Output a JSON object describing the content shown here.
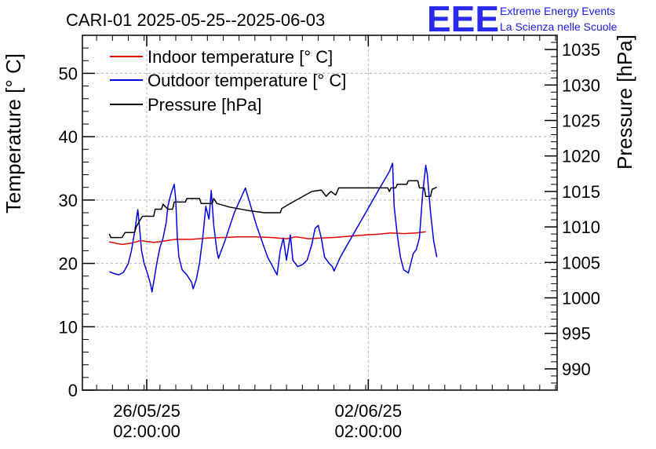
{
  "header": {
    "title": "CARI-01 2025-05-25--2025-06-03",
    "logo": {
      "mark": "EEE",
      "line1": "Extreme Energy Events",
      "line2": "La Scienza nelle Scuole"
    }
  },
  "chart_data": {
    "type": "line",
    "title": "CARI-01 2025-05-25--2025-06-03",
    "grid": true,
    "legend_position": "top-left",
    "x_axis": {
      "min_day": -0.95,
      "max_day": 14.05,
      "tick_labels": [
        {
          "day": 1.0833,
          "line1": "26/05/25",
          "line2": "02:00:00"
        },
        {
          "day": 8.0833,
          "line1": "02/06/25",
          "line2": "02:00:00"
        }
      ],
      "origin": "2025-05-25 00:00:00"
    },
    "y_left": {
      "label": "Temperature [° C]",
      "range": [
        0,
        56
      ],
      "ticks": [
        "0",
        "10",
        "20",
        "30",
        "40",
        "50"
      ]
    },
    "y_right": {
      "label": "Pressure [hPa]",
      "range": [
        987,
        1037
      ],
      "ticks": [
        "990",
        "995",
        "1000",
        "1005",
        "1010",
        "1015",
        "1020",
        "1025",
        "1030",
        "1035"
      ]
    },
    "series": [
      {
        "name": "Indoor temperature [° C]",
        "color": "#e60000",
        "axis": "left",
        "points": [
          [
            -0.1,
            23.4
          ],
          [
            0.3,
            23.0
          ],
          [
            0.6,
            23.2
          ],
          [
            0.9,
            23.6
          ],
          [
            1.3,
            23.3
          ],
          [
            1.6,
            23.5
          ],
          [
            2.0,
            23.8
          ],
          [
            2.5,
            23.8
          ],
          [
            3.0,
            24.0
          ],
          [
            3.5,
            24.1
          ],
          [
            4.0,
            24.2
          ],
          [
            4.5,
            24.2
          ],
          [
            5.0,
            24.1
          ],
          [
            5.5,
            23.9
          ],
          [
            5.8,
            24.2
          ],
          [
            6.2,
            23.9
          ],
          [
            6.6,
            24.0
          ],
          [
            7.0,
            24.1
          ],
          [
            7.5,
            24.3
          ],
          [
            8.0,
            24.5
          ],
          [
            8.4,
            24.6
          ],
          [
            8.8,
            24.8
          ],
          [
            9.2,
            24.7
          ],
          [
            9.6,
            24.8
          ],
          [
            9.9,
            25.0
          ]
        ]
      },
      {
        "name": "Outdoor temperature [° C]",
        "color": "#0000e6",
        "axis": "left",
        "points": [
          [
            -0.1,
            18.7
          ],
          [
            0.05,
            18.4
          ],
          [
            0.2,
            18.2
          ],
          [
            0.35,
            18.6
          ],
          [
            0.5,
            20.0
          ],
          [
            0.6,
            22.0
          ],
          [
            0.7,
            25.0
          ],
          [
            0.8,
            28.5
          ],
          [
            0.85,
            26.0
          ],
          [
            0.92,
            22.0
          ],
          [
            1.0,
            20.0
          ],
          [
            1.1,
            18.5
          ],
          [
            1.2,
            16.8
          ],
          [
            1.25,
            15.5
          ],
          [
            1.3,
            17.0
          ],
          [
            1.4,
            20.0
          ],
          [
            1.5,
            22.5
          ],
          [
            1.6,
            24.0
          ],
          [
            1.7,
            26.5
          ],
          [
            1.75,
            29.0
          ],
          [
            1.85,
            31.0
          ],
          [
            1.95,
            32.5
          ],
          [
            2.0,
            30.0
          ],
          [
            2.05,
            24.0
          ],
          [
            2.1,
            21.0
          ],
          [
            2.2,
            19.0
          ],
          [
            2.35,
            18.2
          ],
          [
            2.5,
            17.0
          ],
          [
            2.55,
            16.0
          ],
          [
            2.65,
            17.5
          ],
          [
            2.75,
            20.0
          ],
          [
            2.85,
            24.0
          ],
          [
            2.95,
            29.0
          ],
          [
            3.05,
            27.0
          ],
          [
            3.12,
            31.5
          ],
          [
            3.2,
            26.0
          ],
          [
            3.3,
            22.0
          ],
          [
            3.35,
            20.8
          ],
          [
            3.55,
            23.5
          ],
          [
            3.85,
            28.0
          ],
          [
            4.2,
            31.9
          ],
          [
            4.55,
            26.0
          ],
          [
            4.9,
            21.0
          ],
          [
            5.2,
            18.2
          ],
          [
            5.3,
            22.0
          ],
          [
            5.4,
            24.0
          ],
          [
            5.5,
            20.5
          ],
          [
            5.62,
            24.5
          ],
          [
            5.7,
            20.5
          ],
          [
            5.85,
            19.5
          ],
          [
            6.0,
            19.8
          ],
          [
            6.15,
            20.5
          ],
          [
            6.3,
            23.0
          ],
          [
            6.4,
            25.5
          ],
          [
            6.5,
            26.0
          ],
          [
            6.6,
            24.0
          ],
          [
            6.7,
            21.0
          ],
          [
            6.85,
            20.0
          ],
          [
            6.95,
            19.5
          ],
          [
            7.0,
            18.8
          ],
          [
            7.2,
            21.0
          ],
          [
            7.6,
            24.5
          ],
          [
            8.0,
            28.0
          ],
          [
            8.4,
            31.5
          ],
          [
            8.75,
            34.5
          ],
          [
            8.85,
            35.8
          ],
          [
            8.9,
            29.0
          ],
          [
            9.0,
            24.5
          ],
          [
            9.1,
            21.0
          ],
          [
            9.2,
            19.0
          ],
          [
            9.35,
            18.5
          ],
          [
            9.5,
            21.5
          ],
          [
            9.6,
            22.2
          ],
          [
            9.7,
            24.0
          ],
          [
            9.8,
            31.0
          ],
          [
            9.9,
            35.5
          ],
          [
            9.95,
            34.0
          ],
          [
            10.05,
            28.0
          ],
          [
            10.15,
            23.5
          ],
          [
            10.25,
            21.0
          ]
        ]
      },
      {
        "name": "Pressure [hPa]",
        "color": "#000000",
        "axis": "right",
        "points": [
          [
            -0.1,
            1009.0
          ],
          [
            -0.05,
            1008.5
          ],
          [
            0.3,
            1008.5
          ],
          [
            0.4,
            1009.2
          ],
          [
            0.7,
            1009.2
          ],
          [
            0.75,
            1010.0
          ],
          [
            0.85,
            1010.8
          ],
          [
            0.95,
            1011.5
          ],
          [
            1.3,
            1011.5
          ],
          [
            1.35,
            1012.5
          ],
          [
            1.55,
            1012.5
          ],
          [
            1.6,
            1013.2
          ],
          [
            1.75,
            1012.5
          ],
          [
            1.9,
            1012.5
          ],
          [
            1.95,
            1013.5
          ],
          [
            2.3,
            1013.5
          ],
          [
            2.35,
            1014.0
          ],
          [
            2.75,
            1014.0
          ],
          [
            2.8,
            1013.3
          ],
          [
            3.15,
            1013.3
          ],
          [
            3.2,
            1014.0
          ],
          [
            3.3,
            1013.3
          ],
          [
            3.7,
            1012.8
          ],
          [
            4.3,
            1012.3
          ],
          [
            4.8,
            1012.0
          ],
          [
            5.3,
            1012.0
          ],
          [
            5.35,
            1012.6
          ],
          [
            5.5,
            1013.0
          ],
          [
            5.7,
            1013.5
          ],
          [
            5.9,
            1014.0
          ],
          [
            6.1,
            1014.5
          ],
          [
            6.3,
            1015.0
          ],
          [
            6.6,
            1015.2
          ],
          [
            6.75,
            1014.3
          ],
          [
            6.9,
            1015.0
          ],
          [
            7.05,
            1014.5
          ],
          [
            7.15,
            1015.5
          ],
          [
            7.4,
            1015.5
          ],
          [
            8.7,
            1015.5
          ],
          [
            8.75,
            1015.0
          ],
          [
            8.8,
            1015.5
          ],
          [
            8.95,
            1015.5
          ],
          [
            9.0,
            1016.0
          ],
          [
            9.3,
            1016.0
          ],
          [
            9.35,
            1016.5
          ],
          [
            9.65,
            1016.5
          ],
          [
            9.7,
            1015.5
          ],
          [
            9.85,
            1015.5
          ],
          [
            9.9,
            1014.3
          ],
          [
            10.05,
            1014.3
          ],
          [
            10.1,
            1015.3
          ],
          [
            10.25,
            1015.6
          ]
        ]
      }
    ]
  }
}
